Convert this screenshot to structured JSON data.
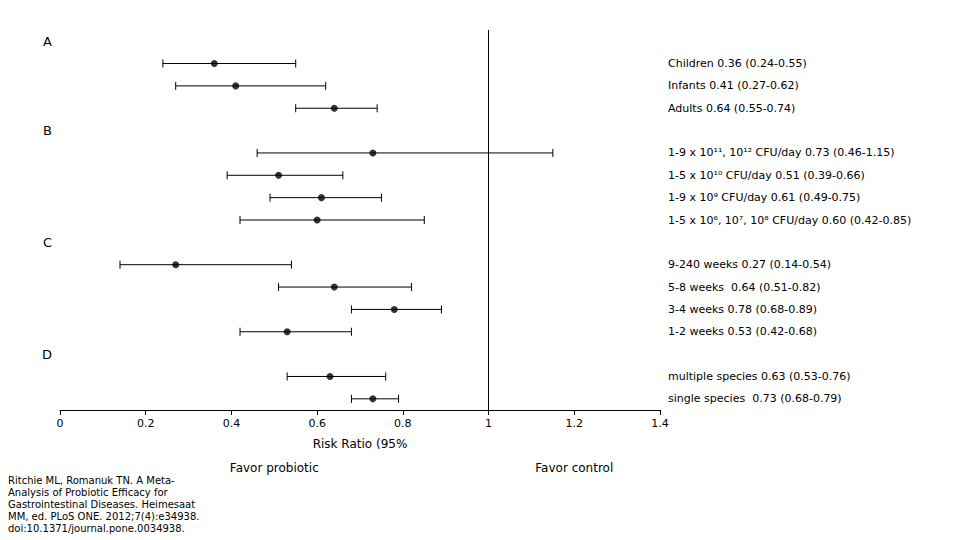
{
  "chart_data": {
    "type": "forest",
    "categories": [
      "Children 0.36 (0.24-0.55)",
      "Infants 0.41 (0.27-0.62)",
      "Adults 0.64 (0.55-0.74)",
      "1-9 x 10¹¹, 10¹² CFU/day 0.73 (0.46-1.15)",
      "1-5 x 10¹⁰ CFU/day 0.51 (0.39-0.66)",
      "1-9 x 10⁹ CFU/day 0.61 (0.49-0.75)",
      "1-5 x 10⁶, 10⁷, 10⁸ CFU/day 0.60 (0.42-0.85)",
      "9-240 weeks 0.27 (0.14-0.54)",
      "5-8 weeks  0.64 (0.51-0.82)",
      "3-4 weeks 0.78 (0.68-0.89)",
      "1-2 weeks 0.53 (0.42-0.68)",
      "multiple species 0.63 (0.53-0.76)",
      "single species  0.73 (0.68-0.79)"
    ],
    "groups": [
      "A",
      "A",
      "A",
      "B",
      "B",
      "B",
      "B",
      "C",
      "C",
      "C",
      "C",
      "D",
      "D"
    ],
    "values": [
      0.36,
      0.41,
      0.64,
      0.73,
      0.51,
      0.61,
      0.6,
      0.27,
      0.64,
      0.78,
      0.53,
      0.63,
      0.73
    ],
    "ci_low": [
      0.24,
      0.27,
      0.55,
      0.46,
      0.39,
      0.49,
      0.42,
      0.14,
      0.51,
      0.68,
      0.42,
      0.53,
      0.68
    ],
    "ci_high": [
      0.55,
      0.62,
      0.74,
      1.15,
      0.66,
      0.75,
      0.85,
      0.54,
      0.82,
      0.89,
      0.68,
      0.76,
      0.79
    ],
    "ref_line": 1.0,
    "xlim": [
      0,
      1.4
    ],
    "xticks": [
      0,
      0.2,
      0.4,
      0.6,
      0.8,
      1,
      1.2,
      1.4
    ],
    "xlabel": "Risk Ratio (95%",
    "annotations": [
      "Favor probiotic",
      "Favor control"
    ],
    "footnote": "Ritchie ML, Romanuk TN. A Meta-\nAnalysis of Probiotic Efficacy for\nGastrointestinal Diseases. Heimesaat\nMM, ed. PLoS ONE. 2012;7(4):e34938.\ndoi:10.1371/journal.pone.0034938.",
    "grid": false,
    "color": "black"
  }
}
